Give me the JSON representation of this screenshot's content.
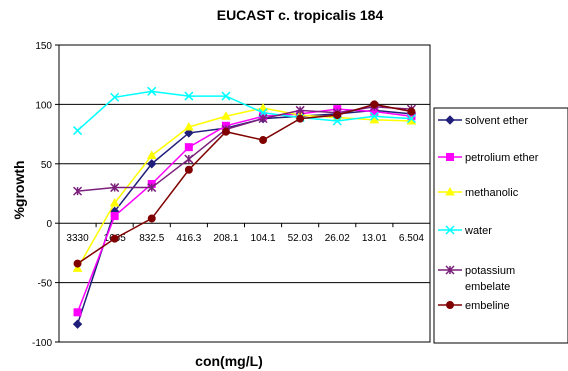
{
  "chart_data": {
    "type": "line",
    "title": "EUCAST c. tropicalis 184",
    "xlabel": "con(mg/L)",
    "ylabel": "%growth",
    "categories": [
      "3330",
      "1665",
      "832.5",
      "416.3",
      "208.1",
      "104.1",
      "52.03",
      "26.02",
      "13.01",
      "6.504"
    ],
    "ylim": [
      -100,
      150
    ],
    "yticks": [
      -100,
      -50,
      0,
      50,
      100,
      150
    ],
    "grid": "horizontal",
    "legend_position": "right",
    "series": [
      {
        "name": "solvent ether",
        "color": "#1f1f7a",
        "marker": "diamond",
        "values": [
          -85,
          10,
          50,
          76,
          80,
          88,
          90,
          92,
          95,
          92
        ]
      },
      {
        "name": "petrolium ether",
        "color": "#ff00ff",
        "marker": "square",
        "values": [
          -75,
          6,
          33,
          64,
          82,
          90,
          92,
          96,
          94,
          90
        ]
      },
      {
        "name": "methanolic",
        "color": "#ffff00",
        "marker": "triangle",
        "values": [
          -38,
          17,
          57,
          81,
          90,
          97,
          91,
          89,
          87,
          86
        ]
      },
      {
        "name": "water",
        "color": "#00ffff",
        "marker": "x",
        "values": [
          78,
          106,
          111,
          107,
          107,
          93,
          89,
          86,
          90,
          88
        ]
      },
      {
        "name": "potassium embelate",
        "color": "#7a1f7a",
        "marker": "star",
        "values": [
          27,
          30,
          30,
          54,
          79,
          88,
          95,
          93,
          98,
          96
        ]
      },
      {
        "name": "embeline",
        "color": "#800000",
        "marker": "circle",
        "values": [
          -34,
          -13,
          4,
          45,
          77,
          70,
          88,
          91,
          100,
          94
        ]
      }
    ]
  },
  "legend_labels": [
    "solvent ether",
    "petrolium ether",
    "methanolic",
    "water",
    "potassium\nembelate",
    "embeline"
  ]
}
